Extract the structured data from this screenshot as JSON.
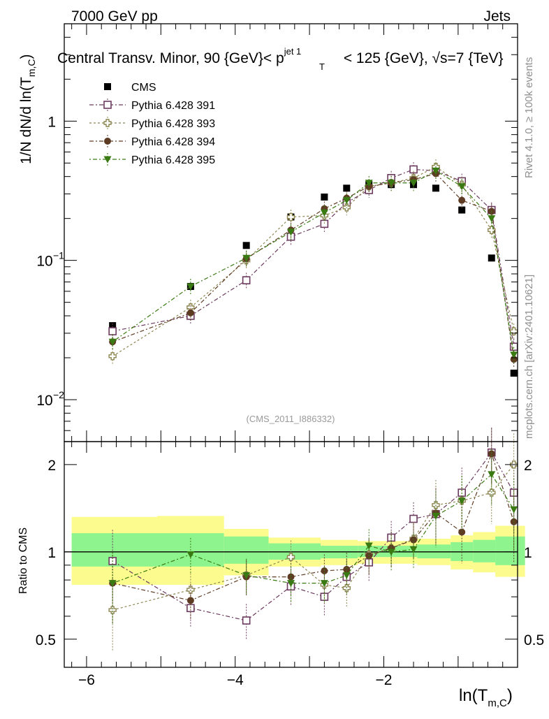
{
  "header": {
    "energy": "7000 GeV pp",
    "group": "Jets",
    "title": "Central Transv. Minor, 90 {GeV}< p",
    "title_sup": "jet 1",
    "title_sub": "T",
    "title_tail": " < 125 {GeV}, √s=7 {TeV}",
    "rivet": "Rivet 4.1.0, ≥ 100k events",
    "mcplots": "mcplots.cern.ch [arXiv:2401.10621]",
    "analysis": "(CMS_2011_I886332)"
  },
  "colors": {
    "CMS": "#000000",
    "p391": "#6b3a5e",
    "p393": "#8c8550",
    "p394": "#5e3c24",
    "p395": "#3a7a12",
    "band_green": "#8ef58e",
    "band_yellow": "#fbfb8e"
  },
  "chart_data": [
    {
      "type": "scatter",
      "panel": "main",
      "ylabel": "1/N   dN/d ln(T_m,C)",
      "ylabel_parts": [
        "1/N   dN/d ln(T",
        "m,C",
        ")"
      ],
      "yscale": "log",
      "ylim": [
        0.005,
        5
      ],
      "xlim": [
        -6.3,
        -0.2
      ],
      "ytick_labels": [
        "1",
        "10",
        "10"
      ],
      "ytick_sups": [
        "",
        "−1",
        "−2"
      ],
      "legend": [
        "CMS",
        "Pythia 6.428 391",
        "Pythia 6.428 393",
        "Pythia 6.428 394",
        "Pythia 6.428 395"
      ],
      "legend_location": "top-left",
      "x": [
        -5.65,
        -4.6,
        -3.85,
        -3.25,
        -2.8,
        -2.5,
        -2.2,
        -1.9,
        -1.6,
        -1.3,
        -0.95,
        -0.55,
        -0.25
      ],
      "series": [
        {
          "name": "CMS",
          "key": "CMS",
          "marker": "filled-square",
          "values": [
            0.034,
            0.065,
            0.128,
            0.205,
            0.285,
            0.33,
            0.35,
            0.35,
            0.35,
            0.33,
            0.23,
            0.104,
            0.0155
          ]
        },
        {
          "name": "Pythia 6.428 391",
          "key": "p391",
          "marker": "open-square",
          "dash": "6,3,2,3",
          "values": [
            0.031,
            0.04,
            0.072,
            0.148,
            0.183,
            0.26,
            0.32,
            0.39,
            0.45,
            0.44,
            0.37,
            0.23,
            0.024
          ]
        },
        {
          "name": "Pythia 6.428 393",
          "key": "p393",
          "marker": "open-cross",
          "dash": "3,3",
          "values": [
            0.0205,
            0.046,
            0.1,
            0.205,
            0.21,
            0.24,
            0.34,
            0.36,
            0.39,
            0.47,
            0.35,
            0.165,
            0.031
          ]
        },
        {
          "name": "Pythia 6.428 394",
          "key": "p394",
          "marker": "filled-circle",
          "dash": "6,3,2,3",
          "values": [
            0.026,
            0.042,
            0.103,
            0.165,
            0.235,
            0.28,
            0.34,
            0.36,
            0.38,
            0.42,
            0.27,
            0.225,
            0.0195
          ]
        },
        {
          "name": "Pythia 6.428 395",
          "key": "p395",
          "marker": "filled-triangle-down",
          "dash": "2,3,6,3",
          "values": [
            0.026,
            0.065,
            0.104,
            0.16,
            0.22,
            0.27,
            0.36,
            0.36,
            0.36,
            0.44,
            0.34,
            0.2,
            0.021
          ]
        }
      ]
    },
    {
      "type": "scatter",
      "panel": "ratio",
      "ylabel": "Ratio to CMS",
      "ylim": [
        0.4,
        2.4
      ],
      "xlabel_parts": [
        "ln(T",
        "m,C",
        ")"
      ],
      "xticks": [
        -6,
        -4,
        -2
      ],
      "xtick_labels": [
        "−6",
        "−4",
        "−2"
      ],
      "ytick_labels": [
        "0.5",
        "1",
        "2"
      ],
      "reference": 1,
      "bands": {
        "edges": [
          -6.2,
          -5.05,
          -4.15,
          -3.55,
          -2.85,
          -2.35,
          -1.55,
          -1.1,
          -0.8,
          -0.5,
          -0.1
        ],
        "green": [
          [
            0.89,
            1.16
          ],
          [
            0.89,
            1.16
          ],
          [
            0.91,
            1.13
          ],
          [
            0.94,
            1.07
          ],
          [
            0.95,
            1.05
          ],
          [
            0.96,
            1.05
          ],
          [
            0.95,
            1.06
          ],
          [
            0.93,
            1.08
          ],
          [
            0.92,
            1.1
          ],
          [
            0.9,
            1.13
          ]
        ],
        "yellow": [
          [
            0.77,
            1.32
          ],
          [
            0.77,
            1.33
          ],
          [
            0.83,
            1.2
          ],
          [
            0.89,
            1.12
          ],
          [
            0.9,
            1.1
          ],
          [
            0.91,
            1.09
          ],
          [
            0.9,
            1.11
          ],
          [
            0.87,
            1.14
          ],
          [
            0.85,
            1.17
          ],
          [
            0.82,
            1.23
          ]
        ]
      },
      "x": [
        -5.65,
        -4.6,
        -3.85,
        -3.25,
        -2.8,
        -2.5,
        -2.2,
        -1.9,
        -1.6,
        -1.3,
        -0.95,
        -0.55,
        -0.25
      ],
      "series": [
        {
          "name": "Pythia 6.428 391",
          "key": "p391",
          "values": [
            0.93,
            0.64,
            0.58,
            0.76,
            0.7,
            0.82,
            0.92,
            1.12,
            1.3,
            1.35,
            1.6,
            2.2,
            1.6
          ]
        },
        {
          "name": "Pythia 6.428 393",
          "key": "p393",
          "values": [
            0.63,
            0.74,
            0.83,
            0.96,
            0.77,
            0.75,
            0.98,
            1.03,
            1.11,
            1.45,
            1.5,
            1.6,
            2.0
          ]
        },
        {
          "name": "Pythia 6.428 394",
          "key": "p394",
          "values": [
            0.78,
            0.68,
            0.82,
            0.82,
            0.86,
            0.87,
            0.97,
            1.03,
            1.1,
            1.36,
            1.17,
            2.18,
            1.27
          ]
        },
        {
          "name": "Pythia 6.428 395",
          "key": "p395",
          "values": [
            0.78,
            0.98,
            0.83,
            0.78,
            0.78,
            0.83,
            1.05,
            1.0,
            1.02,
            1.33,
            1.5,
            1.85,
            1.4
          ]
        }
      ]
    }
  ]
}
